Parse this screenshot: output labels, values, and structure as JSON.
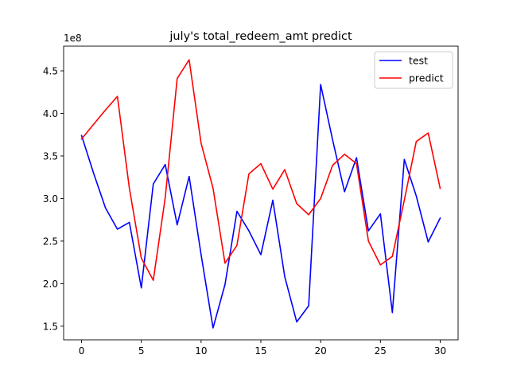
{
  "chart_data": {
    "type": "line",
    "title": "july's total_redeem_amt predict",
    "xlabel": "",
    "ylabel": "",
    "y_offset_label": "1e8",
    "x": [
      0,
      1,
      2,
      3,
      4,
      5,
      6,
      7,
      8,
      9,
      10,
      11,
      12,
      13,
      14,
      15,
      16,
      17,
      18,
      19,
      20,
      21,
      22,
      23,
      24,
      25,
      26,
      27,
      28,
      29,
      30
    ],
    "xlim": [
      -1.5,
      31.5
    ],
    "ylim": [
      1.34,
      4.79
    ],
    "x_ticks": [
      0,
      5,
      10,
      15,
      20,
      25,
      30
    ],
    "x_tick_labels": [
      "0",
      "5",
      "10",
      "15",
      "20",
      "25",
      "30"
    ],
    "y_ticks": [
      1.5,
      2.0,
      2.5,
      3.0,
      3.5,
      4.0,
      4.5
    ],
    "y_tick_labels": [
      "1.5",
      "2.0",
      "2.5",
      "3.0",
      "3.5",
      "4.0",
      "4.5"
    ],
    "grid": false,
    "legend_position": "top-right",
    "series": [
      {
        "name": "test",
        "color": "#0000ff",
        "values": [
          3.74,
          3.3,
          2.89,
          2.64,
          2.72,
          1.95,
          3.17,
          3.4,
          2.69,
          3.26,
          2.34,
          1.48,
          1.99,
          2.85,
          2.62,
          2.34,
          2.98,
          2.08,
          1.55,
          1.74,
          4.34,
          3.69,
          3.08,
          3.48,
          2.62,
          2.82,
          1.66,
          3.46,
          3.03,
          2.49,
          2.77
        ]
      },
      {
        "name": "predict",
        "color": "#ff0000",
        "values": [
          3.7,
          3.87,
          4.04,
          4.2,
          3.12,
          2.3,
          2.04,
          3.01,
          4.41,
          4.63,
          3.65,
          3.12,
          2.24,
          2.45,
          3.29,
          3.41,
          3.11,
          3.34,
          2.94,
          2.81,
          3.0,
          3.39,
          3.52,
          3.41,
          2.5,
          2.22,
          2.32,
          2.98,
          3.67,
          3.77,
          3.12
        ]
      }
    ]
  }
}
